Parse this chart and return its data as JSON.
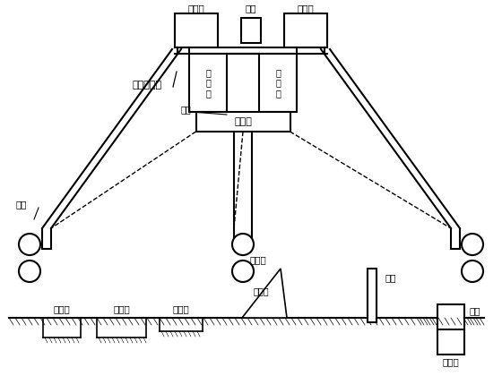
{
  "bg_color": "#ffffff",
  "line_color": "#000000",
  "fig_width": 5.6,
  "fig_height": 4.2,
  "dpi": 100,
  "labels": {
    "zhi_jiang_chi_left": "制浆池",
    "shui_ta": "水塔",
    "zhi_jiang_chi_right": "制浆池",
    "chu_jiang_xun_huan": "出浆循环槽",
    "chen_dian_chi_left": "沉\n淀\n池",
    "chen_dian_chi_right": "沉\n淀\n池",
    "ni_jiang_chi_box": "泥浆池",
    "fa_men": "阀门",
    "zuan_kong": "钻孔",
    "zhi_jiang_chi_bottom": "制浆池",
    "chen_dian_chi_bottom": "沉淀池",
    "ni_jiang_chi_bottom": "泥浆池",
    "ni_jiang_beng": "泥浆泵",
    "jin_jiang_guan": "进浆管",
    "zuan_gan": "钻杆",
    "hu_tong": "护筒",
    "chu_jiang_cao": "出浆槽"
  }
}
